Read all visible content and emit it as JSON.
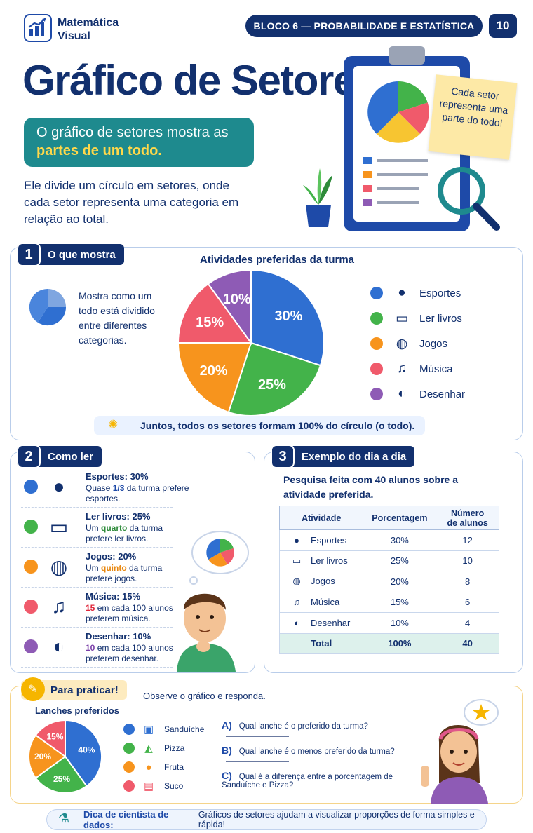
{
  "header": {
    "brand_line1": "Matemática",
    "brand_line2": "Visual",
    "block_label": "BLOCO 6 — PROBABILIDADE E ESTATÍSTICA",
    "page_number": "10"
  },
  "hero": {
    "title": "Gráfico de Setores",
    "highlight_pre": "O gráfico de setores mostra as ",
    "highlight_em": "partes de um todo.",
    "intro": "Ele divide um círculo em setores, onde cada setor representa uma categoria em relação ao total.",
    "note": "Cada setor representa uma parte do todo!"
  },
  "section1": {
    "number": "1",
    "label": "O que mostra",
    "description": "Mostra como um todo está dividido entre diferentes categorias.",
    "footnote": "Juntos, todos os setores formam 100% do círculo (o todo)."
  },
  "chart_data": {
    "type": "pie",
    "title": "Atividades preferidas da turma",
    "categories": [
      "Esportes",
      "Ler livros",
      "Jogos",
      "Música",
      "Desenhar"
    ],
    "values": [
      30,
      25,
      20,
      15,
      10
    ],
    "labels": [
      "30%",
      "25%",
      "20%",
      "15%",
      "10%"
    ],
    "colors": [
      "#2f6fd1",
      "#43b34a",
      "#f7941d",
      "#f05a6b",
      "#8e5bb5"
    ],
    "icons": [
      "soccer-ball-icon",
      "book-icon",
      "gamepad-icon",
      "music-note-icon",
      "palette-icon"
    ],
    "legend_position": "right"
  },
  "section2": {
    "number": "2",
    "label": "Como ler",
    "rows": [
      {
        "heading": "Esportes: 30%",
        "pre": "Quase ",
        "em": "1/3",
        "post": " da turma prefere esportes.",
        "color": "#1e4aa8"
      },
      {
        "heading": "Ler livros: 25%",
        "pre": "Um ",
        "em": "quarto",
        "post": " da turma prefere ler livros.",
        "color": "#2e8b3a"
      },
      {
        "heading": "Jogos: 20%",
        "pre": "Um ",
        "em": "quinto",
        "post": " da turma prefere jogos.",
        "color": "#e8860c"
      },
      {
        "heading": "Música: 15%",
        "pre": "",
        "em": "15",
        "post": " em cada 100 alunos preferem música.",
        "color": "#e0283c"
      },
      {
        "heading": "Desenhar: 10%",
        "pre": "",
        "em": "10",
        "post": " em cada 100 alunos preferem desenhar.",
        "color": "#7a3fa8"
      }
    ]
  },
  "section3": {
    "number": "3",
    "label": "Exemplo do dia a dia",
    "intro": "Pesquisa feita com 40 alunos sobre a atividade preferida.",
    "columns": [
      "Atividade",
      "Porcentagem",
      "Número de alunos"
    ],
    "rows": [
      {
        "activity": "Esportes",
        "percent": "30%",
        "students": "12"
      },
      {
        "activity": "Ler livros",
        "percent": "25%",
        "students": "10"
      },
      {
        "activity": "Jogos",
        "percent": "20%",
        "students": "8"
      },
      {
        "activity": "Música",
        "percent": "15%",
        "students": "6"
      },
      {
        "activity": "Desenhar",
        "percent": "10%",
        "students": "4"
      }
    ],
    "total": {
      "activity": "Total",
      "percent": "100%",
      "students": "40"
    }
  },
  "practice": {
    "label": "Para praticar!",
    "instruction": "Observe o gráfico e responda.",
    "chart_data": {
      "type": "pie",
      "title": "Lanches preferidos",
      "categories": [
        "Sanduíche",
        "Pizza",
        "Fruta",
        "Suco"
      ],
      "values": [
        40,
        25,
        20,
        15
      ],
      "labels": [
        "40%",
        "25%",
        "20%",
        "15%"
      ],
      "colors": [
        "#2f6fd1",
        "#43b34a",
        "#f7941d",
        "#f05a6b"
      ]
    },
    "questions": [
      {
        "letter": "A)",
        "text": "Qual lanche é o preferido da turma?"
      },
      {
        "letter": "B)",
        "text": "Qual lanche é o menos preferido da turma?"
      },
      {
        "letter": "C)",
        "text": "Qual é a diferença entre a porcentagem de Sanduíche e Pizza?"
      }
    ]
  },
  "tip": {
    "label": "Dica de cientista de dados:",
    "text": "Gráficos de setores ajudam a visualizar proporções de forma simples e rápida!"
  }
}
